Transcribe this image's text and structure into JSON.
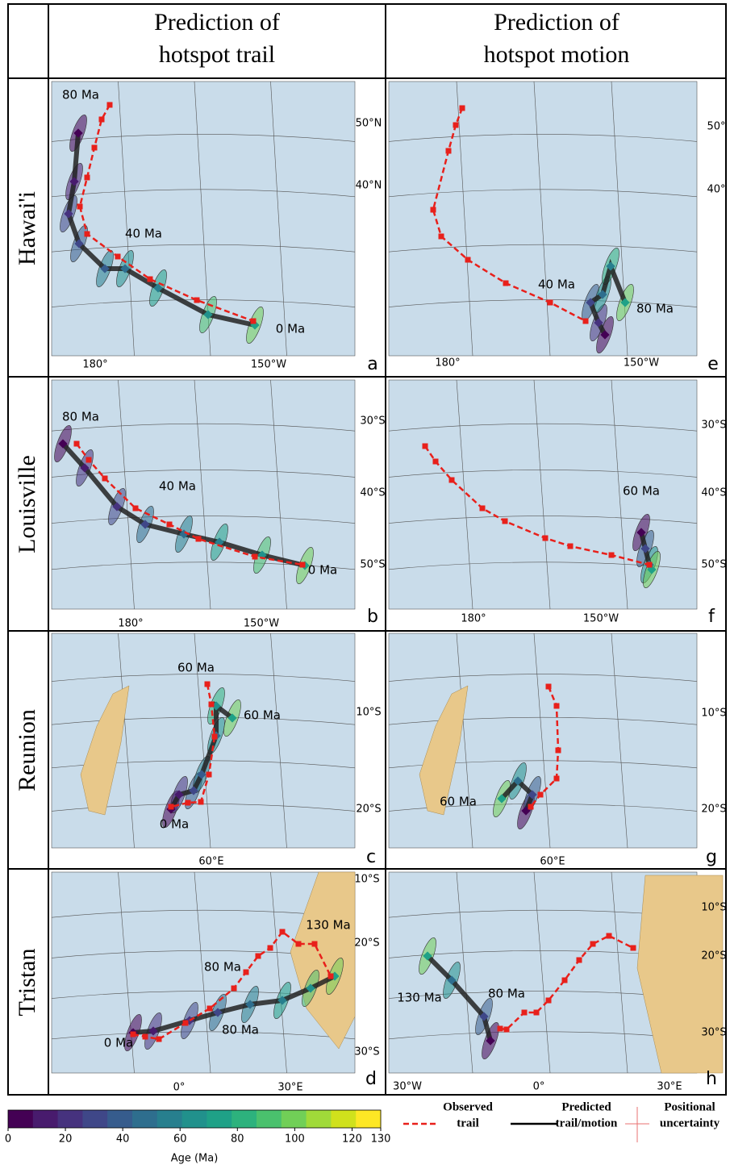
{
  "column_headers": [
    [
      "Prediction of",
      "hotspot trail"
    ],
    [
      "Prediction of",
      "hotspot motion"
    ]
  ],
  "rows": [
    {
      "label": "Hawai'i",
      "panels": [
        {
          "letter": "a",
          "lon_labels": [
            "180°",
            "150°W"
          ],
          "lat_labels": [
            "50°N",
            "40°N"
          ],
          "annotations": [
            "80 Ma",
            "40 Ma",
            "0 Ma"
          ]
        },
        {
          "letter": "e",
          "lon_labels": [
            "180°",
            "150°W"
          ],
          "lat_labels": [
            "50°",
            "40°"
          ],
          "annotations": [
            "40 Ma",
            "80 Ma"
          ]
        }
      ]
    },
    {
      "label": "Louisville",
      "panels": [
        {
          "letter": "b",
          "lon_labels": [
            "180°",
            "150°W"
          ],
          "lat_labels": [
            "30°S",
            "40°S",
            "50°S"
          ],
          "annotations": [
            "80 Ma",
            "40 Ma",
            "0 Ma"
          ]
        },
        {
          "letter": "f",
          "lon_labels": [
            "180°",
            "150°W"
          ],
          "lat_labels": [
            "30°S",
            "40°S",
            "50°S"
          ],
          "annotations": [
            "60 Ma"
          ]
        }
      ]
    },
    {
      "label": "Reunion",
      "panels": [
        {
          "letter": "c",
          "lon_labels": [
            "60°E"
          ],
          "lat_labels": [
            "10°S",
            "20°S"
          ],
          "annotations": [
            "60 Ma",
            "60 Ma",
            "0 Ma"
          ]
        },
        {
          "letter": "g",
          "lon_labels": [
            "60°E"
          ],
          "lat_labels": [
            "10°S",
            "20°S"
          ],
          "annotations": [
            "60 Ma"
          ]
        }
      ]
    },
    {
      "label": "Tristan",
      "panels": [
        {
          "letter": "d",
          "lon_labels": [
            "0°",
            "30°E"
          ],
          "lat_labels": [
            "10°S",
            "20°S",
            "30°S"
          ],
          "annotations": [
            "130 Ma",
            "80 Ma",
            "80 Ma",
            "0 Ma"
          ]
        },
        {
          "letter": "h",
          "lon_labels": [
            "30°W",
            "0°",
            "30°E"
          ],
          "lat_labels": [
            "10°S",
            "20°S",
            "30°S"
          ],
          "annotations": [
            "130 Ma",
            "80 Ma"
          ]
        }
      ]
    }
  ],
  "colorbar": {
    "label": "Age (Ma)",
    "range": [
      0,
      130
    ],
    "ticks": [
      0,
      20,
      40,
      60,
      80,
      100,
      120,
      130
    ],
    "colors": [
      "#440154",
      "#481b6d",
      "#46327e",
      "#3f4788",
      "#365c8d",
      "#2e6e8e",
      "#277f8e",
      "#21918c",
      "#1fa187",
      "#2db27d",
      "#4ac16d",
      "#71cf57",
      "#a0da39",
      "#d0e11c",
      "#fde725"
    ]
  },
  "legend": [
    [
      "Observed",
      "trail"
    ],
    [
      "Predicted",
      "trail/motion"
    ],
    [
      "Positional",
      "uncertainty"
    ]
  ]
}
